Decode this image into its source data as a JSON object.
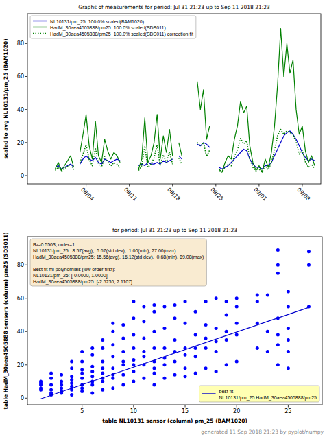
{
  "chart_data": [
    {
      "type": "line",
      "title": "Graphs of measurements for period: Jul 31 21:23 up to Sep 11 2018 21:23",
      "y_label": "scaled to avg NL10131/pm_25 (BAM1020)",
      "x": [
        -1,
        -0.5,
        0,
        0.5,
        1,
        1.5,
        2,
        2.5,
        3,
        3.5,
        4,
        4.5,
        5,
        5.5,
        6,
        6.5,
        7,
        7.5,
        8,
        8.5,
        9,
        9.5,
        10,
        10.5,
        11,
        11.5,
        12,
        12.5,
        13,
        13.5,
        14,
        14.5,
        15,
        15.5,
        16,
        16.5,
        17,
        17.5,
        18,
        18.5,
        19,
        19.5,
        20,
        20.5,
        21,
        21.5,
        22,
        22.5,
        23,
        23.5,
        24,
        24.5,
        25,
        25.5,
        26,
        26.5,
        27,
        27.5,
        28,
        28.5,
        29,
        29.5,
        30,
        30.5,
        31,
        31.5,
        32,
        32.5,
        33,
        33.5,
        34,
        34.5,
        35,
        35.5,
        36,
        36.5,
        37,
        37.5,
        38,
        38.5,
        39,
        39.5,
        40,
        40.5,
        41
      ],
      "xlim": [
        -5.5,
        42
      ],
      "xticks": [
        {
          "value": 4,
          "label": "08/04"
        },
        {
          "value": 11,
          "label": "08/11"
        },
        {
          "value": 18,
          "label": "08/18"
        },
        {
          "value": 25,
          "label": "08/25"
        },
        {
          "value": 32,
          "label": "09/01"
        },
        {
          "value": 39,
          "label": "09/08"
        }
      ],
      "ylim": [
        -5,
        98
      ],
      "yticks": [
        0,
        20,
        40,
        60,
        80
      ],
      "grid": false,
      "legend": "upper left",
      "series": [
        {
          "name": "NL10131/pm_25  100.0% scaled(BAM1020)",
          "color": "#0000cc",
          "line_style": "solid",
          "values": [
            5,
            6,
            4,
            5,
            6,
            7,
            5,
            null,
            7,
            10,
            12,
            10,
            9,
            11,
            8,
            7,
            10,
            9,
            8,
            9,
            10,
            9,
            null,
            null,
            null,
            null,
            null,
            6,
            7,
            6,
            8,
            7,
            7,
            8,
            7,
            9,
            8,
            9,
            10,
            null,
            12,
            10,
            null,
            null,
            null,
            null,
            19,
            18,
            20,
            19,
            17,
            null,
            null,
            5,
            4,
            5,
            6,
            8,
            10,
            12,
            14,
            16,
            15,
            10,
            7,
            5,
            5,
            4,
            6,
            6,
            8,
            12,
            16,
            20,
            24,
            26,
            27,
            25,
            22,
            18,
            14,
            11,
            9,
            10,
            9
          ]
        },
        {
          "name": "HadM_30aea4505888/pm25  100.0% scaled(SDS011)",
          "color": "#008000",
          "line_style": "solid",
          "values": [
            4,
            8,
            3,
            6,
            9,
            12,
            5,
            null,
            14,
            25,
            37,
            18,
            10,
            33,
            12,
            8,
            22,
            15,
            10,
            14,
            12,
            8,
            null,
            null,
            null,
            null,
            null,
            4,
            10,
            35,
            8,
            12,
            20,
            37,
            10,
            24,
            14,
            28,
            12,
            null,
            20,
            12,
            null,
            null,
            null,
            null,
            57,
            40,
            52,
            22,
            30,
            null,
            null,
            4,
            2,
            8,
            12,
            10,
            22,
            30,
            45,
            38,
            42,
            18,
            8,
            3,
            6,
            2,
            10,
            5,
            14,
            30,
            55,
            89,
            60,
            80,
            62,
            70,
            40,
            25,
            30,
            15,
            8,
            12,
            6
          ]
        },
        {
          "name": "HadM_30aea4505888/pm25  100.0% scaled(SDS011) correction fit",
          "color": "#008000",
          "line_style": "dotted",
          "values": [
            3.1,
            5,
            2.6,
            4,
            5.5,
            6.9,
            3.6,
            null,
            7.8,
            13,
            18.7,
            9.7,
            5.9,
            16.8,
            6.9,
            5,
            11.6,
            8.3,
            5.9,
            7.8,
            6.9,
            5,
            null,
            null,
            null,
            null,
            null,
            3.1,
            5.9,
            17.8,
            5,
            6.9,
            10.7,
            18.7,
            5.9,
            12.6,
            7.8,
            14.5,
            6.9,
            null,
            10.7,
            6.9,
            null,
            null,
            null,
            null,
            20,
            18,
            20,
            11.6,
            15.4,
            null,
            null,
            3.1,
            2.1,
            5,
            6.9,
            5.9,
            11.6,
            15.4,
            22.5,
            19.2,
            21.1,
            9.7,
            5,
            2.6,
            4,
            2.1,
            5.9,
            3.6,
            7.8,
            15.4,
            24,
            28,
            25,
            27,
            26,
            25,
            20.1,
            13,
            15.4,
            8.3,
            5,
            6.9,
            4
          ]
        }
      ]
    },
    {
      "type": "scatter",
      "title": "for period: Jul 31 21:23 up to Sep 11 2018 21:23",
      "x_label": "table NL10131 sensor (column) pm_25 (BAM1020)",
      "y_label": "table HadM_30aea4505888 sensors (column) pm25 (SDS011)",
      "xlim": [
        -0.3,
        28.3
      ],
      "xticks": [
        5,
        10,
        15,
        20,
        25
      ],
      "ylim": [
        -4,
        97
      ],
      "yticks": [
        0,
        20,
        40,
        60,
        80
      ],
      "grid": false,
      "legend": "lower right",
      "annotations": [
        [
          "R²=0.5503, order=1",
          "NL10131/pm_25:  8.57(avg),  5.67(std dev),  1.00(min), 27.00(max)",
          "HadM_30aea4505888/pm25: 15.56(avg), 16.12(std dev),  0.68(min), 89.08(max)"
        ],
        [
          "Best fit ml polynomials (low order first):",
          "NL10131/pm_25: [-0.0000, 1.0000]",
          "HadM_30aea4505888/pm25: [-2.5236, 2.1107]"
        ]
      ],
      "series": [
        {
          "type": "scatter",
          "color": "#0000ff",
          "marker": "o",
          "x": [
            1,
            1,
            1,
            1,
            1,
            2,
            2,
            2,
            2,
            2,
            2,
            3,
            3,
            3,
            3,
            3,
            3,
            4,
            4,
            4,
            4,
            4,
            4,
            4,
            4,
            5,
            5,
            5,
            5,
            5,
            5,
            5,
            5,
            6,
            6,
            6,
            6,
            6,
            6,
            6,
            6,
            7,
            7,
            7,
            7,
            7,
            7,
            7,
            7,
            8,
            8,
            8,
            8,
            8,
            8,
            8,
            8,
            9,
            9,
            9,
            9,
            9,
            9,
            9,
            10,
            10,
            10,
            10,
            10,
            10,
            10,
            10,
            11,
            11,
            11,
            11,
            11,
            11,
            11,
            12,
            12,
            12,
            12,
            12,
            12,
            12,
            12,
            13,
            13,
            13,
            13,
            13,
            13,
            14,
            14,
            14,
            14,
            14,
            14,
            15,
            15,
            15,
            15,
            15,
            15,
            16,
            16,
            16,
            16,
            16,
            17,
            17,
            17,
            17,
            17,
            18,
            18,
            18,
            18,
            18,
            19,
            19,
            19,
            19,
            19,
            20,
            20,
            20,
            20,
            20,
            22,
            22,
            22,
            22,
            23,
            23,
            23,
            24,
            24,
            24,
            24,
            24,
            24,
            24,
            25,
            25,
            25,
            25,
            25,
            25,
            27,
            27,
            27
          ],
          "values": [
            8,
            5,
            9,
            6,
            10,
            2,
            5,
            8,
            12,
            15,
            3,
            3,
            6,
            10,
            14,
            4,
            8,
            2,
            5,
            9,
            13,
            18,
            22,
            7,
            11,
            4,
            8,
            12,
            17,
            22,
            28,
            6,
            15,
            3,
            8,
            13,
            19,
            26,
            30,
            10,
            16,
            5,
            10,
            15,
            22,
            30,
            35,
            12,
            18,
            6,
            12,
            18,
            25,
            32,
            40,
            45,
            14,
            8,
            14,
            20,
            28,
            36,
            44,
            22,
            10,
            16,
            23,
            30,
            38,
            48,
            58,
            20,
            12,
            20,
            28,
            36,
            46,
            55,
            25,
            8,
            15,
            22,
            30,
            40,
            52,
            56,
            18,
            12,
            20,
            30,
            42,
            55,
            24,
            14,
            22,
            35,
            48,
            56,
            28,
            13,
            18,
            30,
            45,
            58,
            26,
            15,
            25,
            38,
            52,
            30,
            18,
            30,
            44,
            58,
            36,
            16,
            28,
            42,
            60,
            34,
            20,
            35,
            50,
            58,
            40,
            22,
            38,
            55,
            60,
            45,
            30,
            45,
            58,
            62,
            28,
            40,
            62,
            20,
            32,
            48,
            75,
            80,
            89,
            38,
            18,
            28,
            42,
            55,
            64,
            35,
            55,
            80,
            88
          ]
        },
        {
          "name": "best fit\nNL10131/pm_25 HadM_30aea4505888/pm25",
          "type": "line",
          "color": "#0000cc",
          "line_style": "solid",
          "x": [
            1,
            27
          ],
          "values": [
            -0.41,
            54.47
          ]
        }
      ]
    }
  ],
  "footer": "generated 11 Sep 2018 21:23 by pyplot/numpy"
}
